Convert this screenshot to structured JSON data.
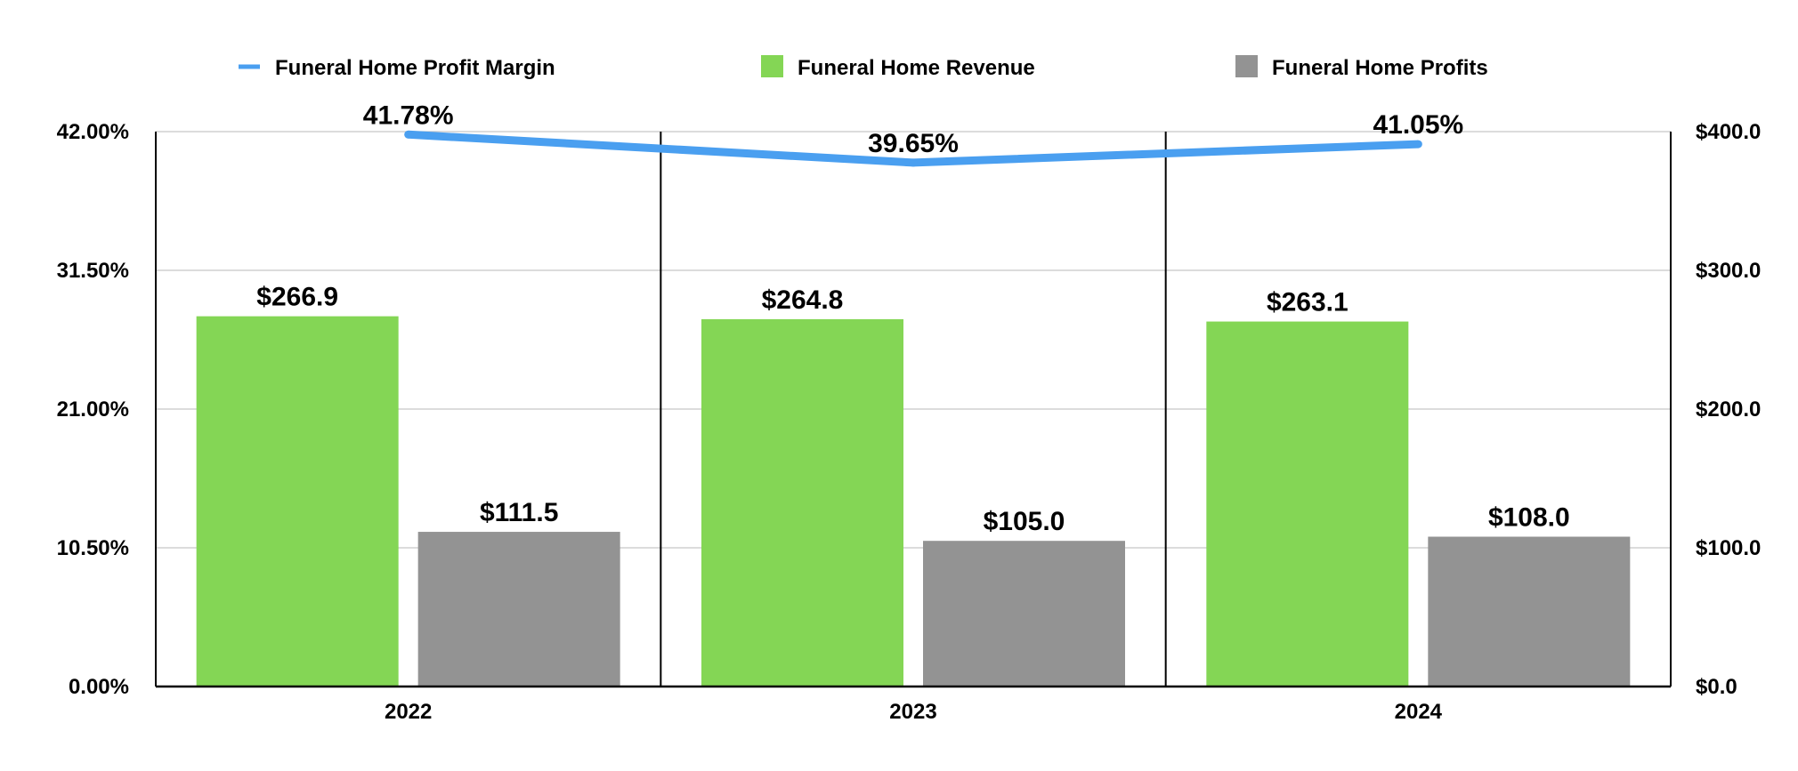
{
  "chart_data": {
    "type": "bar",
    "categories": [
      "2022",
      "2023",
      "2024"
    ],
    "series": [
      {
        "name": "Funeral Home Revenue",
        "kind": "bar",
        "axis": "right",
        "color": "#84d655",
        "values": [
          266.9,
          264.8,
          263.1
        ],
        "labels": [
          "$266.9",
          "$264.8",
          "$263.1"
        ]
      },
      {
        "name": "Funeral Home Profits",
        "kind": "bar",
        "axis": "right",
        "color": "#939393",
        "values": [
          111.5,
          105.0,
          108.0
        ],
        "labels": [
          "$111.5",
          "$105.0",
          "$108.0"
        ]
      },
      {
        "name": "Funeral Home Profit Margin",
        "kind": "line",
        "axis": "left",
        "color": "#4a9ff0",
        "values": [
          41.78,
          39.65,
          41.05
        ],
        "labels": [
          "41.78%",
          "39.65%",
          "41.05%"
        ]
      }
    ],
    "legend_order": [
      "Funeral Home Profit Margin",
      "Funeral Home Revenue",
      "Funeral Home Profits"
    ],
    "legend_position": "top",
    "y_left": {
      "ylim": [
        0,
        42
      ],
      "ticks": [
        0,
        10.5,
        21,
        31.5,
        42
      ],
      "tick_labels": [
        "0.00%",
        "10.50%",
        "21.00%",
        "31.50%",
        "42.00%"
      ]
    },
    "y_right": {
      "ylim": [
        0,
        400
      ],
      "ticks": [
        0,
        100,
        200,
        300,
        400
      ],
      "tick_labels": [
        "$0.0",
        "$100.0",
        "$200.0",
        "$300.0",
        "$400.0"
      ]
    },
    "grid": true
  }
}
